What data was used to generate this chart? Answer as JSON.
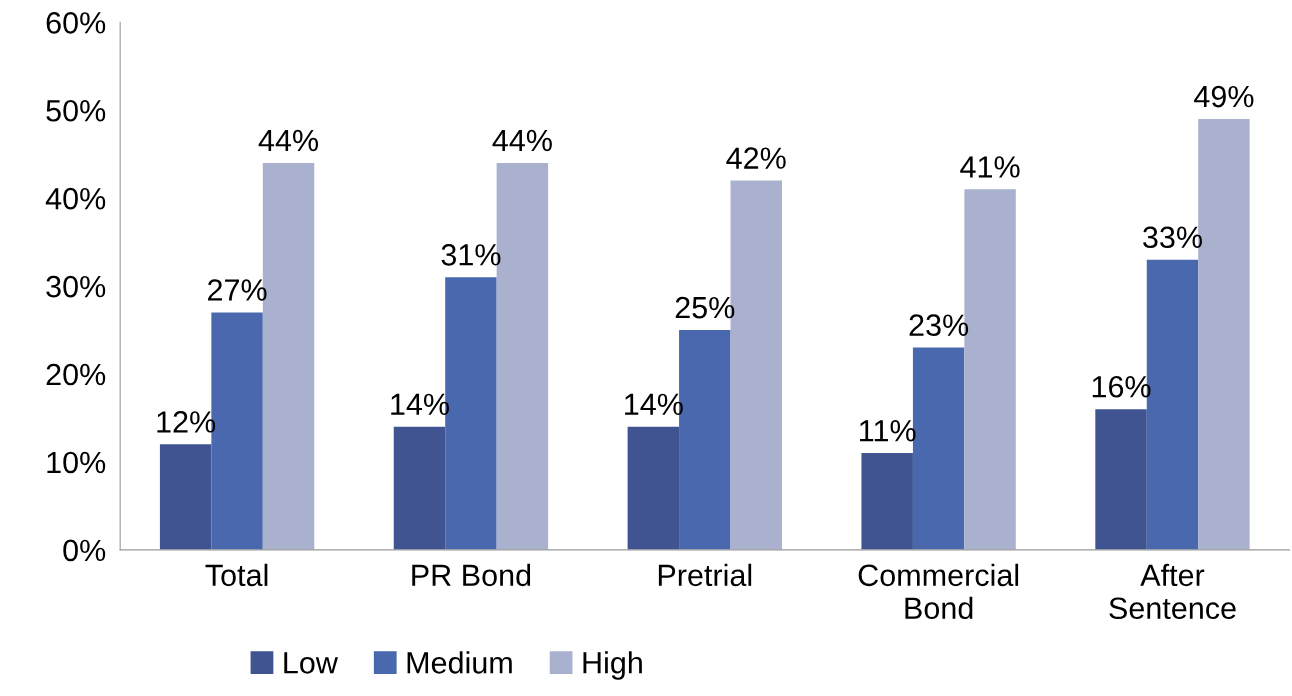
{
  "chart_data": {
    "type": "bar",
    "categories": [
      "Total",
      "PR Bond",
      "Pretrial",
      "Commercial\nBond",
      "After\nSentence"
    ],
    "series": [
      {
        "name": "Low",
        "color": "#3f5490",
        "values": [
          12,
          14,
          14,
          11,
          16
        ],
        "value_labels": [
          "12%",
          "14%",
          "14%",
          "11%",
          "16%"
        ]
      },
      {
        "name": "Medium",
        "color": "#4a68ae",
        "values": [
          27,
          31,
          25,
          23,
          33
        ],
        "value_labels": [
          "27%",
          "31%",
          "25%",
          "23%",
          "33%"
        ]
      },
      {
        "name": "High",
        "color": "#a9b1cf",
        "values": [
          44,
          44,
          42,
          41,
          49
        ],
        "value_labels": [
          "44%",
          "44%",
          "42%",
          "41%",
          "49%"
        ]
      }
    ],
    "ylim": [
      0,
      60
    ],
    "yticks": [
      {
        "value": 0,
        "label": "0%"
      },
      {
        "value": 10,
        "label": "10%"
      },
      {
        "value": 20,
        "label": "20%"
      },
      {
        "value": 30,
        "label": "30%"
      },
      {
        "value": 40,
        "label": "40%"
      },
      {
        "value": 50,
        "label": "50%"
      },
      {
        "value": 60,
        "label": "60%"
      }
    ],
    "grid": false,
    "legend": "bottom"
  }
}
